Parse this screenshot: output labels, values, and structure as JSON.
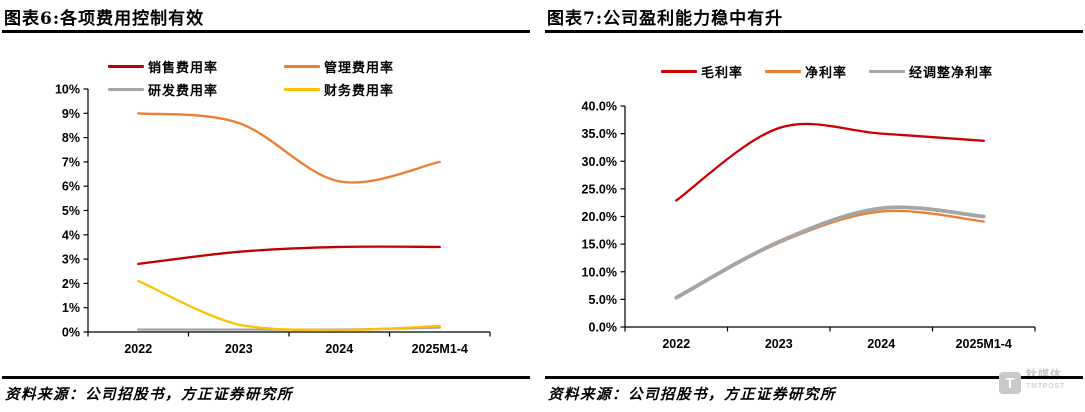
{
  "watermark": {
    "logo_letter": "T",
    "brand": "钛媒体",
    "sub": "TMTPOST"
  },
  "chart_data": [
    {
      "type": "line",
      "title": "图表6:各项费用控制有效",
      "source": "资料来源：公司招股书，方正证券研究所",
      "categories": [
        "2022",
        "2023",
        "2024",
        "2025M1-4"
      ],
      "series": [
        {
          "key": "sales-expense-ratio",
          "name": "销售费用率",
          "color": "#C00000",
          "width": 2.3,
          "values": [
            2.8,
            3.3,
            3.5,
            3.5
          ]
        },
        {
          "key": "admin-expense-ratio",
          "name": "管理费用率",
          "color": "#ED7D31",
          "width": 2.3,
          "values": [
            9.0,
            8.6,
            6.2,
            7.0
          ]
        },
        {
          "key": "rd-expense-ratio",
          "name": "研发费用率",
          "color": "#A6A6A6",
          "width": 2.3,
          "values": [
            0.1,
            0.1,
            0.1,
            0.18
          ]
        },
        {
          "key": "finance-expense-ratio",
          "name": "财务费用率",
          "color": "#FFC000",
          "width": 2.3,
          "values": [
            2.1,
            0.3,
            0.08,
            0.25
          ]
        }
      ],
      "ylim": [
        0,
        10
      ],
      "ytick_step": 1,
      "ytick_format": "int",
      "grid": false,
      "legend_position": "top",
      "legend_layout": "2x2"
    },
    {
      "type": "line",
      "title": "图表7:公司盈利能力稳中有升",
      "source": "资料来源：公司招股书，方正证券研究所",
      "categories": [
        "2022",
        "2023",
        "2024",
        "2025M1-4"
      ],
      "series": [
        {
          "key": "gross-margin",
          "name": "毛利率",
          "color": "#CC0000",
          "width": 2.3,
          "values": [
            22.9,
            36.0,
            35.0,
            33.7
          ]
        },
        {
          "key": "net-margin",
          "name": "净利率",
          "color": "#ED7D31",
          "width": 2.3,
          "values": [
            5.2,
            15.2,
            20.9,
            19.1
          ]
        },
        {
          "key": "adjusted-net-margin",
          "name": "经调整净利率",
          "color": "#A5A5A5",
          "width": 3.8,
          "values": [
            5.3,
            15.4,
            21.5,
            20.0
          ]
        }
      ],
      "ylim": [
        0,
        40
      ],
      "ytick_step": 5,
      "ytick_format": "one_decimal",
      "grid": false,
      "legend_position": "top",
      "legend_layout": "1x3"
    }
  ]
}
